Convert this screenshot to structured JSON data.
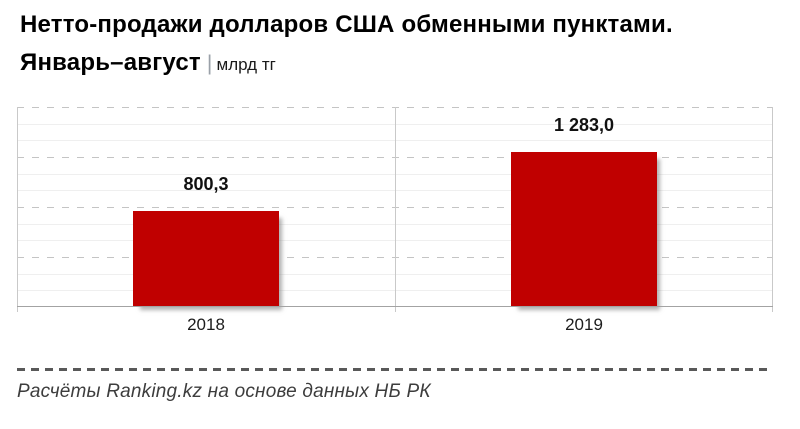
{
  "header": {
    "title_line1": "Нетто-продажи долларов США обменными пунктами.",
    "title_line2": "Январь–август",
    "separator": "|",
    "unit": "млрд тг"
  },
  "chart_data": {
    "type": "bar",
    "title": "Нетто-продажи долларов США обменными пунктами. Январь–август",
    "unit": "млрд тг",
    "categories": [
      "2018",
      "2019"
    ],
    "values": [
      800.3,
      1283.0
    ],
    "value_labels": [
      "800,3",
      "1 283,0"
    ],
    "xlabel": "",
    "ylabel": "",
    "ylim": [
      0,
      1660
    ],
    "legend": "none",
    "grid": "horizontal, dashed major lines with thin minor lines",
    "bar_color": "#c00000"
  },
  "footer": {
    "source": "Расчёты Ranking.kz на основе данных НБ РК"
  },
  "colors": {
    "bar": "#c00000",
    "title": "#000000",
    "value_label": "#111111",
    "axis_label": "#1c1c1c",
    "divider_dash": "#595959",
    "source_text": "#3d3d3d"
  }
}
